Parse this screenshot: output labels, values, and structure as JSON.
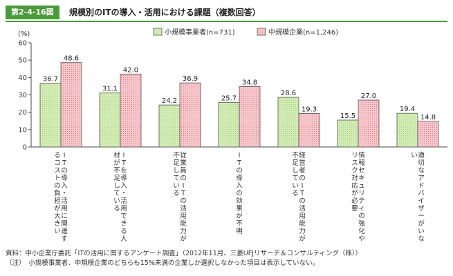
{
  "header": {
    "figure_number": "第2-4-16図",
    "title": "規模別のITの導入・活用における課題（複数回答）"
  },
  "chart_data": {
    "type": "bar",
    "title": "規模別のITの導入・活用における課題（複数回答）",
    "ylabel": "(%)",
    "ylim": [
      0,
      60
    ],
    "yticks": [
      0,
      10,
      20,
      30,
      40,
      50,
      60
    ],
    "grid": false,
    "legend_position": "top-right",
    "categories": [
      "ITの導入・活用に関連するコストの負担が大きい",
      "ITを導入・活用できる人材が不足している",
      "従業員のITの活用能力が不足している",
      "ITの導入の効果が不明",
      "経営者のITの活用能力が不足している",
      "情報セキュリティの強化やリスク対応が必要",
      "適切なアドバイザーがいない"
    ],
    "series": [
      {
        "name": "小規模事業者(n=731)",
        "color": "#d2ecb4",
        "values": [
          36.7,
          31.1,
          24.2,
          25.7,
          28.6,
          15.5,
          19.4
        ]
      },
      {
        "name": "中規模企業(n=1,246)",
        "color": "#f6c8cc",
        "values": [
          48.6,
          42.0,
          36.9,
          34.8,
          19.3,
          27.0,
          14.8
        ]
      }
    ],
    "value_labels": [
      [
        "36.7",
        "31.1",
        "24.2",
        "25.7",
        "28.6",
        "15.5",
        "19.4"
      ],
      [
        "48.6",
        "42.0",
        "36.9",
        "34.8",
        "19.3",
        "27.0",
        "14.8"
      ]
    ]
  },
  "notes": {
    "source": "資料：中小企業庁委託「ITの活用に関するアンケート調査」（2012年11月、三菱UFJリサーチ＆コンサルティング（株））",
    "note": "（注）　小規模事業者、中規模企業のどちらも15%未満の企業しか選択しなかった項目は表示していない。"
  }
}
